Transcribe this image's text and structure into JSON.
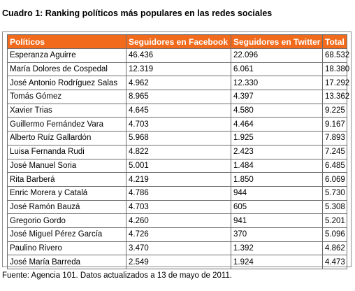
{
  "caption": "Cuadro 1:  Ranking políticos más populares en las redes sociales",
  "colors": {
    "header_bg": "#F26A1B",
    "header_text": "#FFFFFF",
    "border": "#6E6E6E"
  },
  "table": {
    "headers": [
      "Políticos",
      "Seguidores en Facebook",
      "Seguidores en Twitter",
      "Total"
    ],
    "rows": [
      [
        "Esperanza Aguirre",
        "46.436",
        "22.096",
        "68.532"
      ],
      [
        "María Dolores de Cospedal",
        "12.319",
        "6.061",
        "18.380"
      ],
      [
        "José Antonio Rodríguez Salas",
        "4.962",
        "12.330",
        "17.292"
      ],
      [
        "Tomás Gómez",
        "8.965",
        "4.397",
        "13.362"
      ],
      [
        "Xavier Trias",
        "4.645",
        "4.580",
        "9.225"
      ],
      [
        "Guillermo Fernández Vara",
        "4.703",
        "4.464",
        "9.167"
      ],
      [
        "Alberto Ruíz Gallardón",
        "5.968",
        "1.925",
        "7.893"
      ],
      [
        "Luisa Fernanda Rudi",
        "4.822",
        "2.423",
        "7.245"
      ],
      [
        "José Manuel Soria",
        "5.001",
        "1.484",
        "6.485"
      ],
      [
        "Rita Barberá",
        "4.219",
        "1.850",
        "6.069"
      ],
      [
        "Enric Morera y Catalá",
        "4.786",
        "944",
        "5.730"
      ],
      [
        "José Ramón Bauzá",
        "4.703",
        "605",
        "5.308"
      ],
      [
        "Gregorio Gordo",
        "4.260",
        "941",
        "5.201"
      ],
      [
        "José Miguel Pérez García",
        "4.726",
        "370",
        "5.096"
      ],
      [
        "Paulino Rivero",
        "3.470",
        "1.392",
        "4.862"
      ],
      [
        "José María Barreda",
        "2.549",
        "1.924",
        "4.473"
      ]
    ]
  },
  "source": "Fuente: Agencia 101.  Datos actualizados a 13 de mayo de 2011."
}
